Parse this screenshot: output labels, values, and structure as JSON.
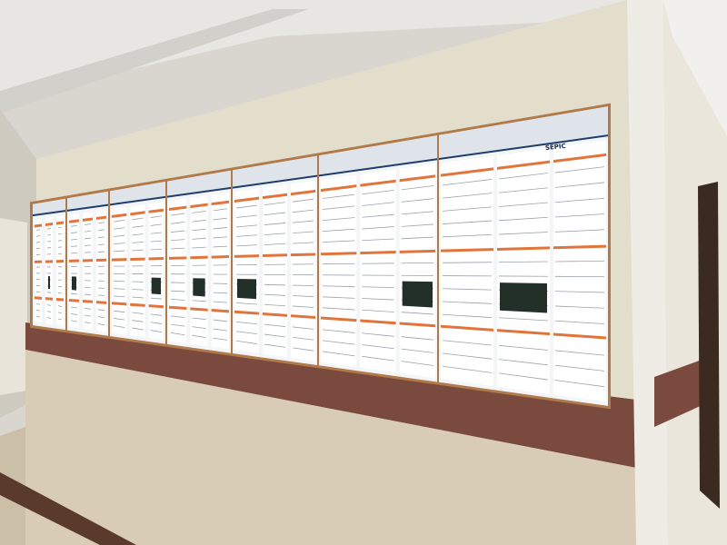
{
  "scene": {
    "description_label": "",
    "poster_title_fragment": "SEPIC",
    "poster_count": 7,
    "colors": {
      "ceiling": "#e6e4e0",
      "wall": "#e4dfcf",
      "marble_band": "#7a4a40",
      "marble_lower": "#d9cdb8",
      "poster_header": "#1f3d6b",
      "poster_accent": "#e0743a",
      "board_edge": "#b07a4a",
      "door": "#3a2a22"
    }
  }
}
